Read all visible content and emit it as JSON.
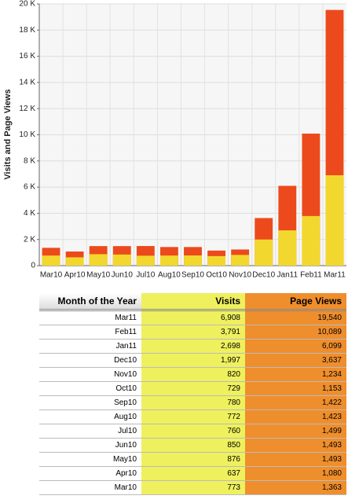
{
  "chart_data": {
    "type": "bar",
    "y_label": "Visits and Page Views",
    "categories": [
      "Mar10",
      "Apr10",
      "May10",
      "Jun10",
      "Jul10",
      "Aug10",
      "Sep10",
      "Oct10",
      "Nov10",
      "Dec10",
      "Jan11",
      "Feb11",
      "Mar11"
    ],
    "series": [
      {
        "name": "Page Views",
        "color": "#ec4a1c",
        "values": [
          1363,
          1080,
          1493,
          1493,
          1499,
          1423,
          1422,
          1153,
          1234,
          3637,
          6099,
          10089,
          19540
        ]
      },
      {
        "name": "Visits",
        "color": "#f2d72e",
        "values": [
          773,
          637,
          876,
          850,
          760,
          772,
          780,
          729,
          820,
          1997,
          2698,
          3791,
          6908
        ]
      }
    ],
    "ylim": [
      0,
      20000
    ],
    "yticks": [
      0,
      {
        "value": 2000,
        "label": "2 K"
      },
      {
        "value": 4000,
        "label": "4 K"
      },
      {
        "value": 6000,
        "label": "6 K"
      },
      {
        "value": 8000,
        "label": "8 K"
      },
      {
        "value": 10000,
        "label": "10 K"
      },
      {
        "value": 12000,
        "label": "12 K"
      },
      {
        "value": 14000,
        "label": "14 K"
      },
      {
        "value": 16000,
        "label": "16 K"
      },
      {
        "value": 18000,
        "label": "18 K"
      },
      {
        "value": 20000,
        "label": "20 K"
      }
    ],
    "grid": true
  },
  "table": {
    "header": [
      "Month of the Year",
      "Visits",
      "Page Views"
    ],
    "rows": [
      [
        "Mar11",
        "6,908",
        "19,540"
      ],
      [
        "Feb11",
        "3,791",
        "10,089"
      ],
      [
        "Jan11",
        "2,698",
        "6,099"
      ],
      [
        "Dec10",
        "1,997",
        "3,637"
      ],
      [
        "Nov10",
        "820",
        "1,234"
      ],
      [
        "Oct10",
        "729",
        "1,153"
      ],
      [
        "Sep10",
        "780",
        "1,422"
      ],
      [
        "Aug10",
        "772",
        "1,423"
      ],
      [
        "Jul10",
        "760",
        "1,499"
      ],
      [
        "Jun10",
        "850",
        "1,493"
      ],
      [
        "May10",
        "876",
        "1,493"
      ],
      [
        "Apr10",
        "637",
        "1,080"
      ],
      [
        "Mar10",
        "773",
        "1,363"
      ]
    ]
  }
}
